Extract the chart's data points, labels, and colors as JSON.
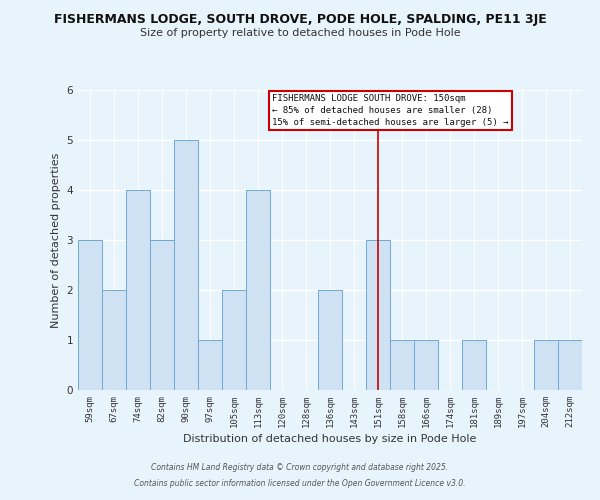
{
  "title_line1": "FISHERMANS LODGE, SOUTH DROVE, PODE HOLE, SPALDING, PE11 3JE",
  "title_line2": "Size of property relative to detached houses in Pode Hole",
  "xlabel": "Distribution of detached houses by size in Pode Hole",
  "ylabel": "Number of detached properties",
  "bin_labels": [
    "59sqm",
    "67sqm",
    "74sqm",
    "82sqm",
    "90sqm",
    "97sqm",
    "105sqm",
    "113sqm",
    "120sqm",
    "128sqm",
    "136sqm",
    "143sqm",
    "151sqm",
    "158sqm",
    "166sqm",
    "174sqm",
    "181sqm",
    "189sqm",
    "197sqm",
    "204sqm",
    "212sqm"
  ],
  "bar_heights": [
    3,
    2,
    4,
    3,
    5,
    1,
    2,
    4,
    0,
    0,
    2,
    0,
    3,
    1,
    1,
    0,
    1,
    0,
    0,
    1,
    1
  ],
  "bar_color": "#cfe2f3",
  "bar_edge_color": "#6fa8d0",
  "highlight_line_color": "#cc0000",
  "highlight_line_index": 12,
  "ylim": [
    0,
    6
  ],
  "yticks": [
    0,
    1,
    2,
    3,
    4,
    5,
    6
  ],
  "annotation_title": "FISHERMANS LODGE SOUTH DROVE: 150sqm",
  "annotation_line1": "← 85% of detached houses are smaller (28)",
  "annotation_line2": "15% of semi-detached houses are larger (5) →",
  "bg_color": "#e8f4fc",
  "grid_color": "#ffffff",
  "footer_line1": "Contains HM Land Registry data © Crown copyright and database right 2025.",
  "footer_line2": "Contains public sector information licensed under the Open Government Licence v3.0."
}
